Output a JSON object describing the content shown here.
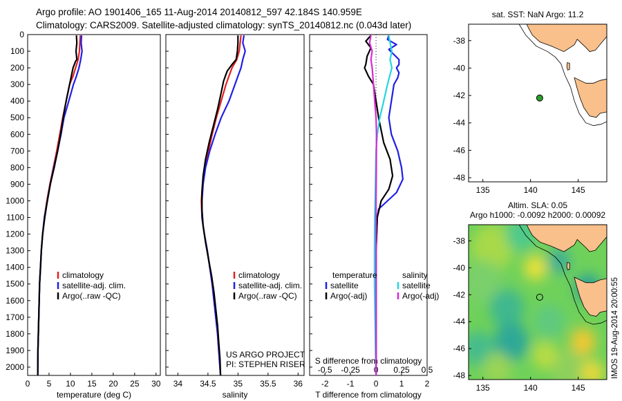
{
  "header": {
    "line1": "Argo profile: AO 1901406_165 11-Aug-2014 20140812_597 42.184S 140.959E",
    "line2": "Climatology: CARS2009. Satellite-adjusted climatology: synTS_20140812.nc (0.043d later)"
  },
  "colors": {
    "climatology": "#e41e1e",
    "satellite": "#1e1ee6",
    "argo": "#000000",
    "sat_salinity": "#22d6e0",
    "argo_salinity_diff": "#d62ad6",
    "land": "#f9c08b",
    "sea": "#ffffff"
  },
  "chart_data": [
    {
      "type": "line",
      "panel": "temperature",
      "xlabel": "temperature (deg C)",
      "xlim": [
        0,
        31
      ],
      "xticks": [
        0,
        5,
        10,
        15,
        20,
        25,
        30
      ],
      "ylim": [
        0,
        2050
      ],
      "yticks": [
        0,
        100,
        200,
        300,
        400,
        500,
        600,
        700,
        800,
        900,
        1000,
        1100,
        1200,
        1300,
        1400,
        1500,
        1600,
        1700,
        1800,
        1900,
        2000
      ],
      "legend": [
        "climatology",
        "satellite-adj. clim.",
        "Argo(..raw -QC)"
      ],
      "series": [
        {
          "name": "climatology",
          "color": "#e41e1e",
          "points": [
            [
              12.3,
              5
            ],
            [
              12.1,
              100
            ],
            [
              11.8,
              150
            ],
            [
              11.2,
              200
            ],
            [
              10.6,
              250
            ],
            [
              9.8,
              300
            ],
            [
              9.0,
              400
            ],
            [
              8.2,
              500
            ],
            [
              7.5,
              600
            ],
            [
              6.8,
              700
            ],
            [
              6.0,
              800
            ],
            [
              5.2,
              900
            ],
            [
              4.5,
              1000
            ],
            [
              3.9,
              1100
            ],
            [
              3.5,
              1200
            ],
            [
              3.2,
              1300
            ],
            [
              3.0,
              1400
            ],
            [
              2.8,
              1500
            ],
            [
              2.7,
              1600
            ],
            [
              2.6,
              1700
            ],
            [
              2.5,
              1800
            ],
            [
              2.4,
              1900
            ],
            [
              2.35,
              2050
            ]
          ]
        },
        {
          "name": "satellite-adj. clim.",
          "color": "#1e1ee6",
          "points": [
            [
              12.6,
              5
            ],
            [
              12.5,
              50
            ],
            [
              12.7,
              100
            ],
            [
              12.4,
              150
            ],
            [
              12.0,
              200
            ],
            [
              11.4,
              250
            ],
            [
              10.7,
              300
            ],
            [
              9.6,
              400
            ],
            [
              8.5,
              500
            ],
            [
              7.8,
              600
            ],
            [
              7.0,
              700
            ],
            [
              6.1,
              800
            ],
            [
              5.3,
              900
            ],
            [
              4.6,
              1000
            ],
            [
              3.9,
              1100
            ],
            [
              3.5,
              1200
            ],
            [
              3.2,
              1300
            ],
            [
              3.0,
              1400
            ],
            [
              2.8,
              1500
            ],
            [
              2.7,
              1600
            ],
            [
              2.6,
              1700
            ],
            [
              2.5,
              1800
            ],
            [
              2.4,
              1900
            ],
            [
              2.35,
              2050
            ]
          ]
        },
        {
          "name": "Argo(..raw -QC)",
          "color": "#000000",
          "points": [
            [
              11.4,
              5
            ],
            [
              11.5,
              50
            ],
            [
              11.3,
              100
            ],
            [
              11.5,
              150
            ],
            [
              11.2,
              160
            ],
            [
              10.6,
              200
            ],
            [
              10.2,
              250
            ],
            [
              9.8,
              300
            ],
            [
              9.0,
              400
            ],
            [
              8.3,
              500
            ],
            [
              7.7,
              600
            ],
            [
              7.0,
              700
            ],
            [
              6.2,
              800
            ],
            [
              5.3,
              900
            ],
            [
              4.6,
              1000
            ],
            [
              4.0,
              1100
            ],
            [
              3.5,
              1200
            ],
            [
              3.2,
              1300
            ],
            [
              3.0,
              1400
            ],
            [
              2.8,
              1500
            ],
            [
              2.7,
              1600
            ],
            [
              2.6,
              1700
            ],
            [
              2.5,
              1800
            ],
            [
              2.4,
              1900
            ],
            [
              2.35,
              2050
            ]
          ]
        }
      ]
    },
    {
      "type": "line",
      "panel": "salinity",
      "xlabel": "salinity",
      "xlim": [
        33.8,
        36.1
      ],
      "xticks": [
        34,
        34.5,
        35,
        35.5,
        36
      ],
      "xticklabels": [
        "34",
        "34.5",
        "35",
        "35.5",
        "36"
      ],
      "ylim": [
        0,
        2050
      ],
      "legend": [
        "climatology",
        "satellite-adj. clim.",
        "Argo(..raw -QC)"
      ],
      "annotation": [
        "US ARGO PROJECT",
        "PI: STEPHEN RISER"
      ],
      "series": [
        {
          "name": "climatology",
          "color": "#e41e1e",
          "points": [
            [
              35.05,
              5
            ],
            [
              35.02,
              100
            ],
            [
              34.98,
              150
            ],
            [
              34.9,
              200
            ],
            [
              34.85,
              250
            ],
            [
              34.8,
              300
            ],
            [
              34.72,
              400
            ],
            [
              34.64,
              500
            ],
            [
              34.57,
              600
            ],
            [
              34.51,
              700
            ],
            [
              34.45,
              800
            ],
            [
              34.41,
              900
            ],
            [
              34.39,
              1000
            ],
            [
              34.4,
              1100
            ],
            [
              34.44,
              1200
            ],
            [
              34.49,
              1300
            ],
            [
              34.53,
              1400
            ],
            [
              34.57,
              1500
            ],
            [
              34.6,
              1600
            ],
            [
              34.63,
              1700
            ],
            [
              34.66,
              1800
            ],
            [
              34.68,
              1900
            ],
            [
              34.71,
              2050
            ]
          ]
        },
        {
          "name": "satellite-adj. clim.",
          "color": "#1e1ee6",
          "points": [
            [
              35.1,
              5
            ],
            [
              35.08,
              50
            ],
            [
              35.12,
              100
            ],
            [
              35.08,
              150
            ],
            [
              35.05,
              200
            ],
            [
              35.0,
              250
            ],
            [
              34.95,
              300
            ],
            [
              34.85,
              400
            ],
            [
              34.72,
              500
            ],
            [
              34.62,
              600
            ],
            [
              34.53,
              700
            ],
            [
              34.46,
              800
            ],
            [
              34.42,
              900
            ],
            [
              34.4,
              1000
            ],
            [
              34.4,
              1100
            ],
            [
              34.44,
              1200
            ],
            [
              34.49,
              1300
            ],
            [
              34.53,
              1400
            ],
            [
              34.57,
              1500
            ],
            [
              34.6,
              1600
            ],
            [
              34.63,
              1700
            ],
            [
              34.66,
              1800
            ],
            [
              34.68,
              1900
            ],
            [
              34.71,
              2050
            ]
          ]
        },
        {
          "name": "Argo(..raw -QC)",
          "color": "#000000",
          "points": [
            [
              35.0,
              5
            ],
            [
              35.0,
              50
            ],
            [
              34.99,
              100
            ],
            [
              34.97,
              150
            ],
            [
              34.9,
              180
            ],
            [
              34.82,
              220
            ],
            [
              34.76,
              280
            ],
            [
              34.72,
              350
            ],
            [
              34.66,
              450
            ],
            [
              34.59,
              550
            ],
            [
              34.52,
              650
            ],
            [
              34.46,
              750
            ],
            [
              34.42,
              850
            ],
            [
              34.4,
              950
            ],
            [
              34.4,
              1050
            ],
            [
              34.42,
              1150
            ],
            [
              34.46,
              1250
            ],
            [
              34.51,
              1350
            ],
            [
              34.56,
              1450
            ],
            [
              34.6,
              1550
            ],
            [
              34.63,
              1650
            ],
            [
              34.66,
              1750
            ],
            [
              34.68,
              1850
            ],
            [
              34.7,
              1950
            ],
            [
              34.71,
              2050
            ]
          ]
        }
      ]
    },
    {
      "type": "line",
      "panel": "difference",
      "xlabel": "T difference from climatology",
      "xlabel_top": "S difference from climatology",
      "xlim": [
        -2.6,
        2.0
      ],
      "xticks": [
        -2,
        -1,
        0,
        1,
        2
      ],
      "top_xticks": [
        -0.5,
        -0.25,
        0,
        0.25,
        0.5
      ],
      "top_xticklabels": [
        "-0.5",
        "-0.25",
        "0",
        "0.25",
        "0.5"
      ],
      "ylim": [
        0,
        2050
      ],
      "legend_left_title": "temperature",
      "legend_left": [
        "satellite",
        "Argo(-adj)"
      ],
      "legend_right_title": "salinity",
      "legend_right": [
        "satellite",
        "Argo(-adj)"
      ],
      "series": [
        {
          "name": "temperature satellite",
          "color": "#1e1ee6",
          "points": [
            [
              0.5,
              5
            ],
            [
              0.45,
              30
            ],
            [
              0.8,
              60
            ],
            [
              0.5,
              90
            ],
            [
              0.7,
              120
            ],
            [
              0.9,
              150
            ],
            [
              0.9,
              180
            ],
            [
              0.8,
              200
            ],
            [
              0.9,
              230
            ],
            [
              0.85,
              260
            ],
            [
              0.7,
              300
            ],
            [
              0.6,
              400
            ],
            [
              0.5,
              500
            ],
            [
              0.6,
              600
            ],
            [
              0.85,
              700
            ],
            [
              1.0,
              800
            ],
            [
              1.05,
              870
            ],
            [
              0.8,
              950
            ],
            [
              0.45,
              1000
            ],
            [
              0.1,
              1050
            ],
            [
              0.05,
              1100
            ],
            [
              0,
              1300
            ],
            [
              0,
              2050
            ]
          ]
        },
        {
          "name": "temperature Argo(-adj)",
          "color": "#000000",
          "points": [
            [
              -0.2,
              5
            ],
            [
              -0.4,
              40
            ],
            [
              -0.2,
              80
            ],
            [
              -0.35,
              130
            ],
            [
              -0.4,
              180
            ],
            [
              -0.45,
              200
            ],
            [
              -0.3,
              250
            ],
            [
              -0.1,
              300
            ],
            [
              0,
              400
            ],
            [
              0.1,
              500
            ],
            [
              0.3,
              650
            ],
            [
              0.55,
              750
            ],
            [
              0.65,
              850
            ],
            [
              0.5,
              930
            ],
            [
              0.2,
              1000
            ],
            [
              0.05,
              1100
            ],
            [
              0,
              1300
            ],
            [
              0,
              2050
            ]
          ]
        },
        {
          "name": "salinity satellite",
          "color": "#22d6e0",
          "points": [
            [
              0.5,
              5
            ],
            [
              0.55,
              50
            ],
            [
              0.62,
              100
            ],
            [
              0.55,
              150
            ],
            [
              0.62,
              200
            ],
            [
              0.45,
              300
            ],
            [
              0.3,
              400
            ],
            [
              0.15,
              500
            ],
            [
              0.05,
              600
            ],
            [
              0,
              700
            ],
            [
              -0.02,
              900
            ],
            [
              -0.05,
              1100
            ],
            [
              -0.06,
              1300
            ],
            [
              -0.06,
              1500
            ],
            [
              -0.04,
              1700
            ],
            [
              -0.02,
              1900
            ],
            [
              0,
              2050
            ]
          ]
        },
        {
          "name": "salinity Argo(-adj)",
          "color": "#d62ad6",
          "points": [
            [
              -0.2,
              5
            ],
            [
              -0.25,
              50
            ],
            [
              -0.15,
              100
            ],
            [
              -0.2,
              150
            ],
            [
              -0.15,
              200
            ],
            [
              -0.1,
              300
            ],
            [
              -0.05,
              400
            ],
            [
              0,
              500
            ],
            [
              0.02,
              600
            ],
            [
              0.01,
              800
            ],
            [
              0,
              1000
            ],
            [
              0,
              2050
            ]
          ]
        }
      ]
    },
    {
      "type": "map",
      "panel": "sst-map",
      "title": "sat. SST: NaN Argo: 11.2",
      "xlim": [
        133.5,
        148
      ],
      "ylim": [
        -48.3,
        -36.8
      ],
      "xticks": [
        135,
        140,
        145
      ],
      "yticks": [
        -38,
        -40,
        -42,
        -44,
        -46,
        -48
      ],
      "argo_position": [
        140.959,
        -42.184
      ]
    },
    {
      "type": "heatmap",
      "panel": "sla-map",
      "title_line1": "Altim. SLA: 0.05",
      "title_line2": "Argo h1000: -0.0092 h2000: 0.00092",
      "xlim": [
        133.5,
        148
      ],
      "ylim": [
        -48.3,
        -36.8
      ],
      "xticks": [
        135,
        140,
        145
      ],
      "yticks": [
        -38,
        -40,
        -42,
        -44,
        -46,
        -48
      ],
      "argo_position": [
        140.959,
        -42.184
      ],
      "side_label": "IMOS 19-Aug-2014 20:00:55"
    }
  ]
}
